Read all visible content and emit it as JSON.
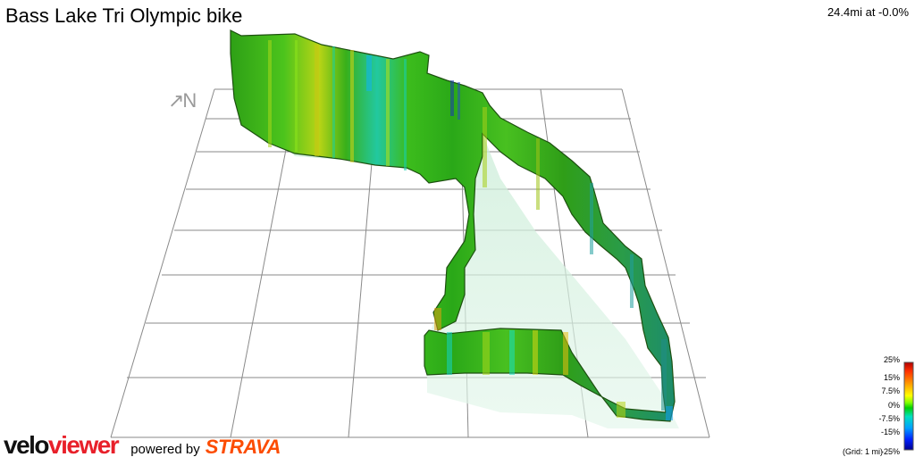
{
  "header": {
    "title": "Bass Lake Tri Olympic bike",
    "stats": "24.4mi at -0.0%"
  },
  "compass": {
    "label": "↗N",
    "icon": "north-arrow-icon"
  },
  "legend": {
    "labels": [
      "25%",
      "15%",
      "7.5%",
      "0%",
      "-7.5%",
      "-15%",
      "-25%"
    ],
    "grid_note": "(Grid: 1 mi)",
    "colors": [
      "#b00000",
      "#ff3000",
      "#ffa000",
      "#ffff00",
      "#80ff00",
      "#00d000",
      "#00e0c0",
      "#00a0ff",
      "#0020ff",
      "#000090"
    ]
  },
  "branding": {
    "velo": "velo",
    "viewer": "viewer",
    "powered_by": "powered by",
    "strava": "STRAVA",
    "velo_color": "#111111",
    "viewer_color": "#e8202a",
    "strava_color": "#fc4c02"
  },
  "palette": {
    "grid_line": "#808080",
    "wall_main": "#3cb81e",
    "wall_edge": "#1a5a10",
    "shadow": "#c8ecd6"
  }
}
